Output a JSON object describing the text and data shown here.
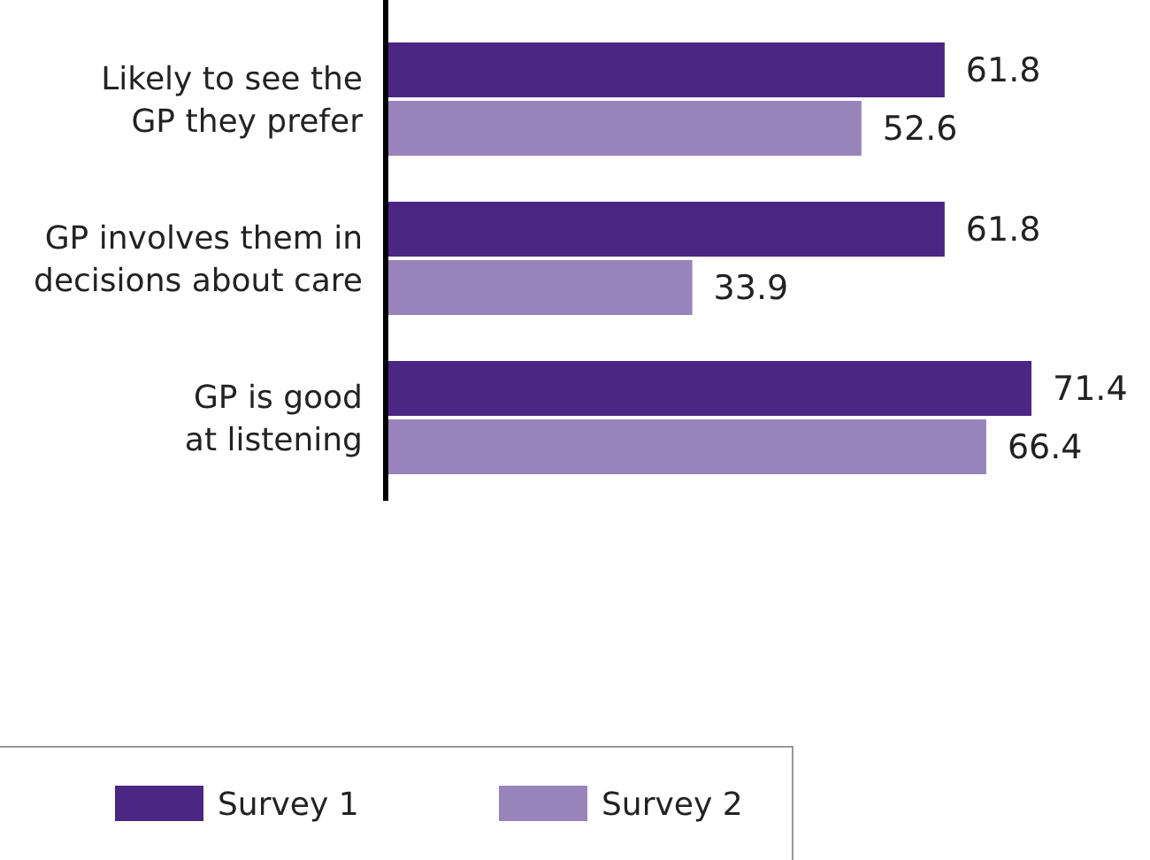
{
  "chart_data": {
    "type": "bar",
    "orientation": "horizontal",
    "categories": [
      "Likely to see the GP they prefer",
      "GP involves them in decisions about care",
      "GP is good at listening"
    ],
    "series": [
      {
        "name": "Survey 1",
        "color": "#4b2682",
        "values": [
          61.8,
          61.8,
          71.4
        ]
      },
      {
        "name": "Survey 2",
        "color": "#9983bb",
        "values": [
          52.6,
          33.9,
          66.4
        ]
      }
    ],
    "data_labels": true,
    "legend": "bottom left",
    "tick_labels": "y"
  }
}
